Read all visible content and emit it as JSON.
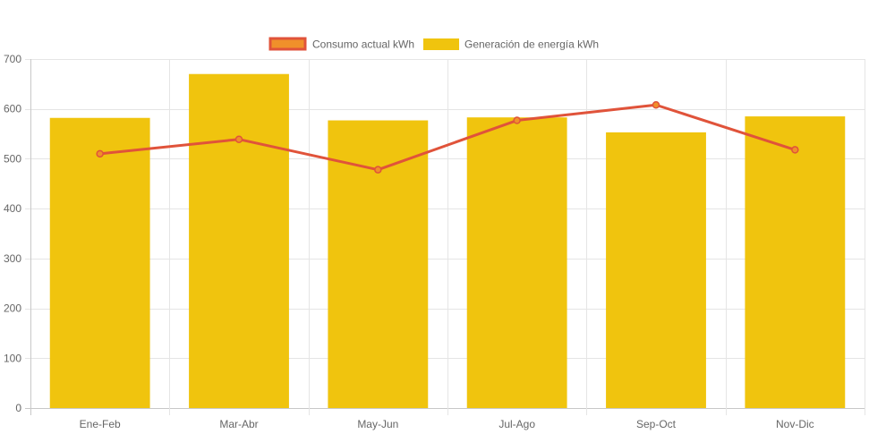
{
  "chart_data": {
    "type": "bar",
    "categories": [
      "Ene-Feb",
      "Mar-Abr",
      "May-Jun",
      "Jul-Ago",
      "Sep-Oct",
      "Nov-Dic"
    ],
    "series": [
      {
        "name": "Consumo actual kWh",
        "type": "line",
        "values": [
          510,
          539,
          478,
          577,
          608,
          518
        ],
        "color": "#e0533a",
        "legend_fill": "#f0902a"
      },
      {
        "name": "Generación de energía kWh",
        "type": "bar",
        "values": [
          582,
          670,
          577,
          583,
          553,
          585
        ],
        "color": "#f0c40e"
      }
    ],
    "legend_order": [
      0,
      1
    ],
    "legend_position": "top",
    "ylim": [
      0,
      700
    ],
    "yticks": [
      0,
      100,
      200,
      300,
      400,
      500,
      600,
      700
    ],
    "grid": true,
    "title": "",
    "xlabel": "",
    "ylabel": ""
  }
}
